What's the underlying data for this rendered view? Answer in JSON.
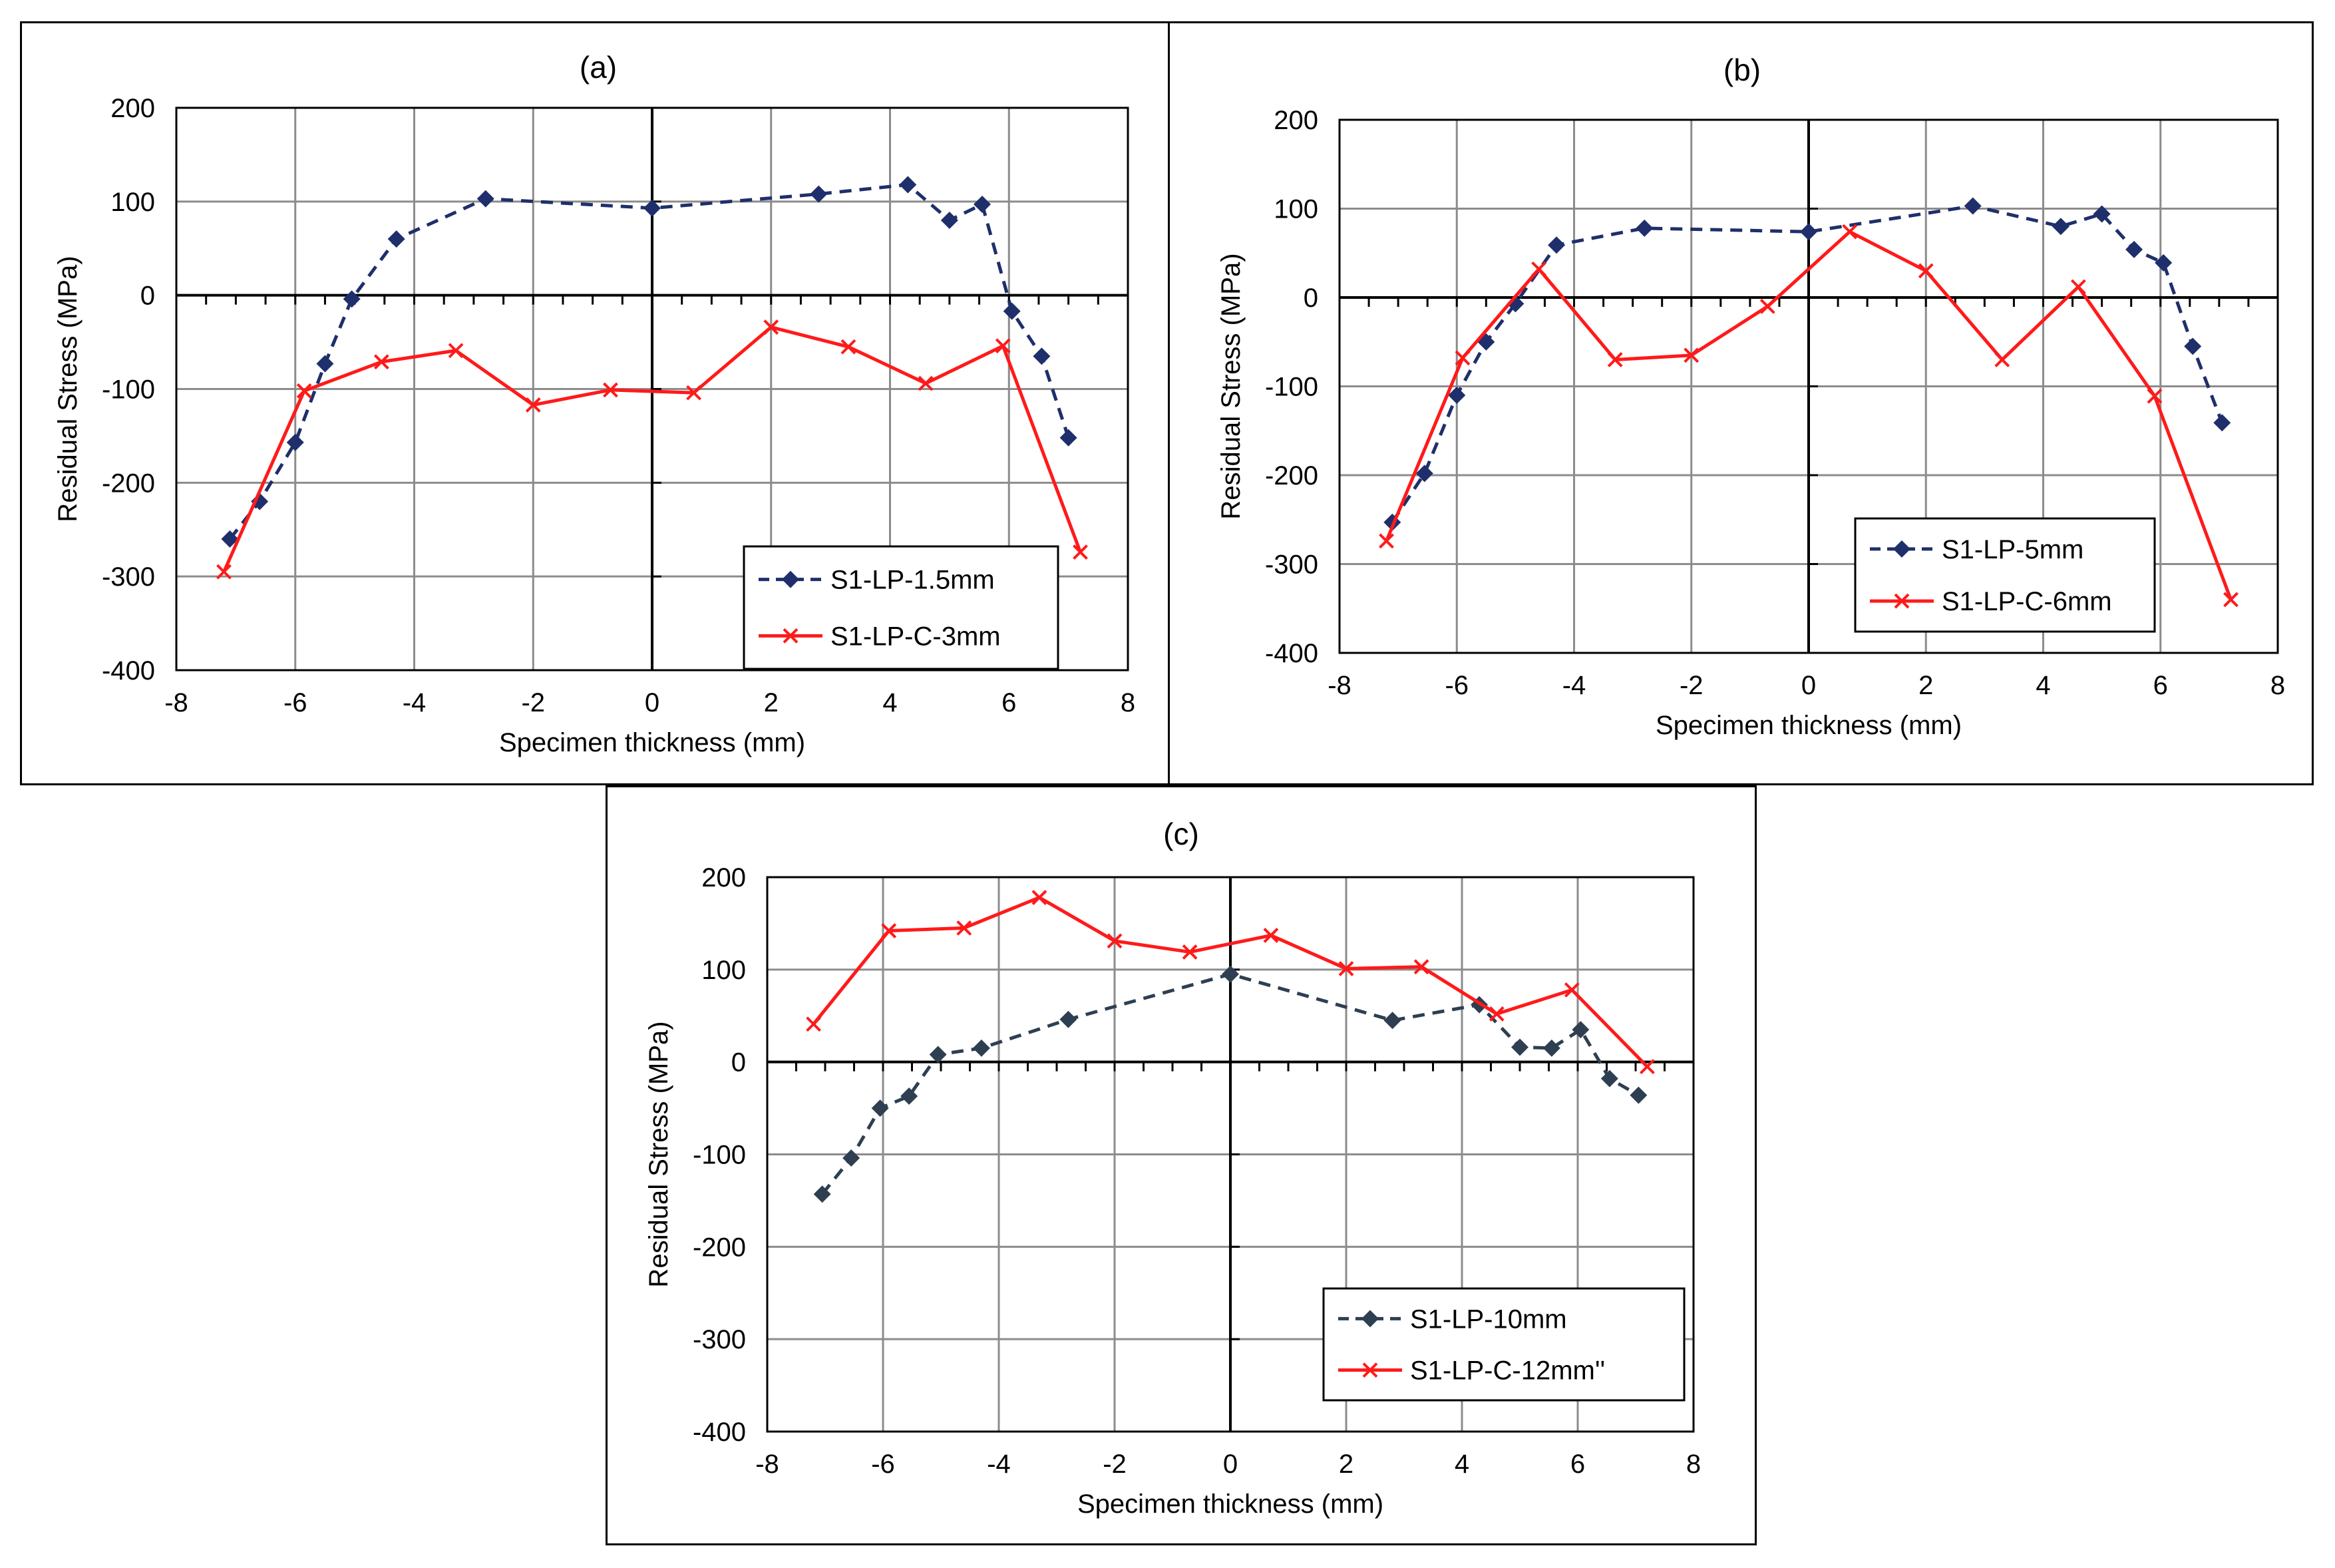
{
  "chart_data": [
    {
      "panel": "a",
      "type": "line",
      "title": "(a)",
      "xlabel": "Specimen thickness (mm)",
      "ylabel": "Residual Stress (MPa)",
      "xlim": [
        -8,
        8
      ],
      "ylim": [
        -400,
        200
      ],
      "xticks": [
        -8,
        -6,
        -4,
        -2,
        0,
        2,
        4,
        6,
        8
      ],
      "yticks": [
        200,
        100,
        0,
        -100,
        -200,
        -300,
        -400
      ],
      "grid": true,
      "legend_position": "bottom-right",
      "series": [
        {
          "name": "S1-LP-1.5mm",
          "style": "dashed",
          "marker": "diamond",
          "color": "#1f2f6b",
          "x": [
            -7.1,
            -6.6,
            -6.0,
            -5.5,
            -5.05,
            -4.3,
            -2.8,
            0.0,
            2.8,
            4.3,
            5.0,
            5.55,
            6.05,
            6.55,
            7.0
          ],
          "y": [
            -260,
            -220,
            -157,
            -73,
            -4,
            60,
            103,
            93,
            108,
            118,
            80,
            97,
            -17,
            -65,
            -152
          ]
        },
        {
          "name": "S1-LP-C-3mm",
          "style": "solid",
          "marker": "x",
          "color": "#ff1a1a",
          "x": [
            -7.2,
            -5.85,
            -4.55,
            -3.3,
            -2.0,
            -0.7,
            0.7,
            2.0,
            3.3,
            4.6,
            5.9,
            7.2
          ],
          "y": [
            -295,
            -102,
            -71,
            -59,
            -117,
            -101,
            -104,
            -34,
            -55,
            -94,
            -54,
            -274
          ]
        }
      ]
    },
    {
      "panel": "b",
      "type": "line",
      "title": "(b)",
      "xlabel": "Specimen thickness (mm)",
      "ylabel": "Residual Stress (MPa)",
      "xlim": [
        -8,
        8
      ],
      "ylim": [
        -400,
        200
      ],
      "xticks": [
        -8,
        -6,
        -4,
        -2,
        0,
        2,
        4,
        6,
        8
      ],
      "yticks": [
        200,
        100,
        0,
        -100,
        -200,
        -300,
        -400
      ],
      "grid": true,
      "legend_position": "bottom-right",
      "series": [
        {
          "name": "S1-LP-5mm",
          "style": "dashed",
          "marker": "diamond",
          "color": "#1f2f6b",
          "x": [
            -7.1,
            -6.55,
            -6.0,
            -5.5,
            -5.0,
            -4.3,
            -2.8,
            0.0,
            2.8,
            4.3,
            5.0,
            5.55,
            6.05,
            6.55,
            7.05
          ],
          "y": [
            -253,
            -198,
            -110,
            -50,
            -7,
            59,
            78,
            74,
            103,
            80,
            94,
            54,
            39,
            -55,
            -141
          ]
        },
        {
          "name": "S1-LP-C-6mm",
          "style": "solid",
          "marker": "x",
          "color": "#ff1a1a",
          "x": [
            -7.2,
            -5.9,
            -4.6,
            -3.3,
            -2.0,
            -0.7,
            0.7,
            2.0,
            3.3,
            4.6,
            5.9,
            7.2
          ],
          "y": [
            -274,
            -68,
            32,
            -70,
            -65,
            -10,
            74,
            30,
            -70,
            12,
            -111,
            -340
          ]
        }
      ]
    },
    {
      "panel": "c",
      "type": "line",
      "title": "(c)",
      "xlabel": "Specimen thickness (mm)",
      "ylabel": "Residual Stress (MPa)",
      "xlim": [
        -8,
        8
      ],
      "ylim": [
        -400,
        200
      ],
      "xticks": [
        -8,
        -6,
        -4,
        -2,
        0,
        2,
        4,
        6,
        8
      ],
      "yticks": [
        200,
        100,
        0,
        -100,
        -200,
        -300,
        -400
      ],
      "grid": true,
      "legend_position": "bottom-right",
      "series": [
        {
          "name": "S1-LP-10mm",
          "style": "dashed",
          "marker": "diamond",
          "color": "#2e3f52",
          "x": [
            -7.05,
            -6.55,
            -6.05,
            -5.55,
            -5.05,
            -4.3,
            -2.8,
            0.0,
            2.8,
            4.3,
            5.0,
            5.55,
            6.05,
            6.55,
            7.05
          ],
          "y": [
            -143,
            -104,
            -50,
            -37,
            8,
            15,
            46,
            95,
            45,
            62,
            16,
            15,
            35,
            -18,
            -36
          ]
        },
        {
          "name": "S1-LP-C-12mm''",
          "style": "solid",
          "marker": "x",
          "color": "#ff1a1a",
          "x": [
            -7.2,
            -5.9,
            -4.6,
            -3.3,
            -2.0,
            -0.7,
            0.7,
            2.0,
            3.3,
            4.6,
            5.9,
            7.2
          ],
          "y": [
            41,
            142,
            145,
            178,
            131,
            119,
            137,
            101,
            103,
            52,
            78,
            -5
          ]
        }
      ]
    }
  ]
}
